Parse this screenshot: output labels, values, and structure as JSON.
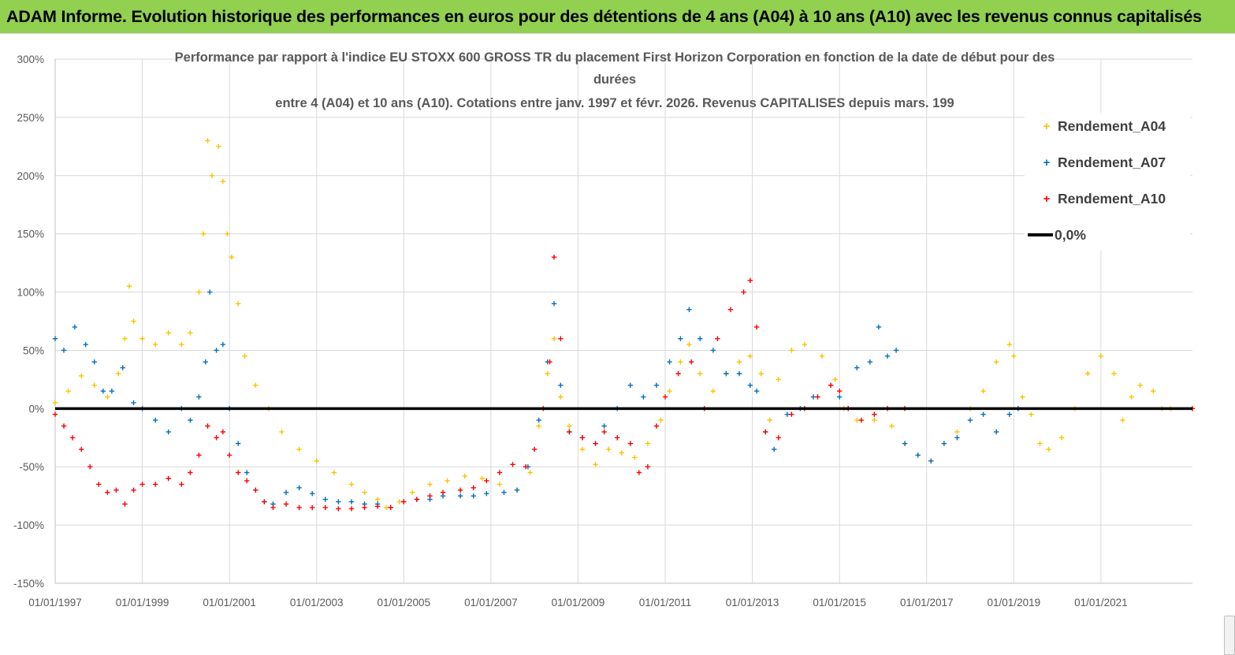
{
  "banner": {
    "text": "ADAM Informe. Evolution historique des performances en euros pour des détentions de 4 ans (A04) à 10 ans (A10) avec les revenus connus capitalisés"
  },
  "colors": {
    "banner_bg": "#92d050",
    "A04": "#ffc000",
    "A07": "#0070c0",
    "A10": "#ff0000",
    "zero_line": "#000000",
    "grid": "#d9d9d9",
    "axis_text": "#595959"
  },
  "chart_data": {
    "type": "scatter",
    "title_lines": [
      "Performance par rapport à l'indice EU STOXX 600 GROSS TR  du placement First Horizon Corporation en fonction de la date de début pour des",
      "durées",
      "entre 4 (A04) et 10 ans (A10). Cotations entre janv. 1997 et févr. 2026. Revenus CAPITALISES depuis mars. 199"
    ],
    "xlabel": "",
    "ylabel": "",
    "xlim": [
      1997.0,
      2023.1
    ],
    "ylim": [
      -150,
      300
    ],
    "y_ticks": [
      -150,
      -100,
      -50,
      0,
      50,
      100,
      150,
      200,
      250,
      300
    ],
    "y_tick_labels": [
      "-150%",
      "-100%",
      "-50%",
      "0%",
      "50%",
      "100%",
      "150%",
      "200%",
      "250%",
      "300%"
    ],
    "x_ticks": [
      1997,
      1999,
      2001,
      2003,
      2005,
      2007,
      2009,
      2011,
      2013,
      2015,
      2017,
      2019,
      2021
    ],
    "x_tick_labels": [
      "01/01/1997",
      "01/01/1999",
      "01/01/2001",
      "01/01/2003",
      "01/01/2005",
      "01/01/2007",
      "01/01/2009",
      "01/01/2011",
      "01/01/2013",
      "01/01/2015",
      "01/01/2017",
      "01/01/2019",
      "01/01/2021"
    ],
    "grid": true,
    "legend_position": "top-right",
    "series": [
      {
        "name": "Rendement_A04",
        "marker": "+",
        "points": [
          [
            1997.0,
            5
          ],
          [
            1997.3,
            15
          ],
          [
            1997.6,
            28
          ],
          [
            1997.9,
            20
          ],
          [
            1998.2,
            10
          ],
          [
            1998.45,
            30
          ],
          [
            1998.6,
            60
          ],
          [
            1998.7,
            105
          ],
          [
            1998.8,
            75
          ],
          [
            1999.0,
            60
          ],
          [
            1999.3,
            55
          ],
          [
            1999.6,
            65
          ],
          [
            1999.9,
            55
          ],
          [
            2000.1,
            65
          ],
          [
            2000.3,
            100
          ],
          [
            2000.4,
            150
          ],
          [
            2000.5,
            230
          ],
          [
            2000.6,
            200
          ],
          [
            2000.75,
            225
          ],
          [
            2000.85,
            195
          ],
          [
            2000.95,
            150
          ],
          [
            2001.05,
            130
          ],
          [
            2001.2,
            90
          ],
          [
            2001.35,
            45
          ],
          [
            2001.6,
            20
          ],
          [
            2001.9,
            0
          ],
          [
            2002.2,
            -20
          ],
          [
            2002.6,
            -35
          ],
          [
            2003.0,
            -45
          ],
          [
            2003.4,
            -55
          ],
          [
            2003.8,
            -65
          ],
          [
            2004.1,
            -72
          ],
          [
            2004.4,
            -78
          ],
          [
            2004.6,
            -85
          ],
          [
            2004.9,
            -80
          ],
          [
            2005.2,
            -72
          ],
          [
            2005.6,
            -65
          ],
          [
            2006.0,
            -62
          ],
          [
            2006.4,
            -58
          ],
          [
            2006.8,
            -60
          ],
          [
            2007.2,
            -65
          ],
          [
            2007.6,
            -70
          ],
          [
            2007.9,
            -55
          ],
          [
            2008.1,
            -15
          ],
          [
            2008.3,
            30
          ],
          [
            2008.45,
            60
          ],
          [
            2008.6,
            10
          ],
          [
            2008.8,
            -15
          ],
          [
            2009.1,
            -35
          ],
          [
            2009.4,
            -48
          ],
          [
            2009.7,
            -35
          ],
          [
            2010.0,
            -38
          ],
          [
            2010.3,
            -42
          ],
          [
            2010.6,
            -30
          ],
          [
            2010.9,
            -10
          ],
          [
            2011.1,
            15
          ],
          [
            2011.35,
            40
          ],
          [
            2011.55,
            55
          ],
          [
            2011.8,
            30
          ],
          [
            2012.1,
            15
          ],
          [
            2012.4,
            30
          ],
          [
            2012.7,
            40
          ],
          [
            2012.95,
            45
          ],
          [
            2013.2,
            30
          ],
          [
            2013.4,
            -10
          ],
          [
            2013.6,
            25
          ],
          [
            2013.9,
            50
          ],
          [
            2014.2,
            55
          ],
          [
            2014.6,
            45
          ],
          [
            2014.9,
            25
          ],
          [
            2015.1,
            0
          ],
          [
            2015.4,
            -10
          ],
          [
            2015.8,
            -10
          ],
          [
            2016.2,
            -15
          ],
          [
            2016.5,
            -30
          ],
          [
            2016.8,
            -40
          ],
          [
            2017.1,
            -45
          ],
          [
            2017.4,
            -30
          ],
          [
            2017.7,
            -20
          ],
          [
            2018.0,
            0
          ],
          [
            2018.3,
            15
          ],
          [
            2018.6,
            40
          ],
          [
            2018.9,
            55
          ],
          [
            2019.0,
            45
          ],
          [
            2019.2,
            10
          ],
          [
            2019.4,
            -5
          ],
          [
            2019.6,
            -30
          ],
          [
            2019.8,
            -35
          ],
          [
            2020.1,
            -25
          ],
          [
            2020.4,
            0
          ],
          [
            2020.7,
            30
          ],
          [
            2021.0,
            45
          ],
          [
            2021.3,
            30
          ],
          [
            2021.5,
            -10
          ],
          [
            2021.7,
            10
          ],
          [
            2021.9,
            20
          ],
          [
            2022.2,
            15
          ],
          [
            2022.4,
            0
          ],
          [
            2022.6,
            0
          ],
          [
            2023.1,
            0
          ]
        ]
      },
      {
        "name": "Rendement_A07",
        "marker": "+",
        "points": [
          [
            1997.0,
            60
          ],
          [
            1997.2,
            50
          ],
          [
            1997.45,
            70
          ],
          [
            1997.7,
            55
          ],
          [
            1997.9,
            40
          ],
          [
            1998.1,
            15
          ],
          [
            1998.3,
            15
          ],
          [
            1998.55,
            35
          ],
          [
            1998.8,
            5
          ],
          [
            1999.0,
            0
          ],
          [
            1999.3,
            -10
          ],
          [
            1999.6,
            -20
          ],
          [
            1999.9,
            0
          ],
          [
            2000.1,
            -10
          ],
          [
            2000.3,
            10
          ],
          [
            2000.45,
            40
          ],
          [
            2000.55,
            100
          ],
          [
            2000.7,
            50
          ],
          [
            2000.85,
            55
          ],
          [
            2001.0,
            0
          ],
          [
            2001.2,
            -30
          ],
          [
            2001.4,
            -55
          ],
          [
            2001.6,
            -70
          ],
          [
            2001.8,
            -80
          ],
          [
            2002.0,
            -82
          ],
          [
            2002.3,
            -72
          ],
          [
            2002.6,
            -68
          ],
          [
            2002.9,
            -73
          ],
          [
            2003.2,
            -78
          ],
          [
            2003.5,
            -80
          ],
          [
            2003.8,
            -80
          ],
          [
            2004.1,
            -82
          ],
          [
            2004.4,
            -82
          ],
          [
            2004.7,
            -85
          ],
          [
            2005.0,
            -80
          ],
          [
            2005.3,
            -78
          ],
          [
            2005.6,
            -78
          ],
          [
            2005.9,
            -75
          ],
          [
            2006.3,
            -75
          ],
          [
            2006.6,
            -75
          ],
          [
            2006.9,
            -73
          ],
          [
            2007.3,
            -72
          ],
          [
            2007.6,
            -70
          ],
          [
            2007.85,
            -50
          ],
          [
            2008.1,
            -10
          ],
          [
            2008.3,
            40
          ],
          [
            2008.45,
            90
          ],
          [
            2008.6,
            20
          ],
          [
            2008.8,
            -20
          ],
          [
            2009.1,
            -25
          ],
          [
            2009.4,
            -30
          ],
          [
            2009.6,
            -15
          ],
          [
            2009.9,
            0
          ],
          [
            2010.2,
            20
          ],
          [
            2010.5,
            10
          ],
          [
            2010.8,
            20
          ],
          [
            2011.1,
            40
          ],
          [
            2011.35,
            60
          ],
          [
            2011.55,
            85
          ],
          [
            2011.8,
            60
          ],
          [
            2012.1,
            50
          ],
          [
            2012.4,
            30
          ],
          [
            2012.7,
            30
          ],
          [
            2012.95,
            20
          ],
          [
            2013.1,
            15
          ],
          [
            2013.3,
            -20
          ],
          [
            2013.5,
            -35
          ],
          [
            2013.8,
            -5
          ],
          [
            2014.1,
            0
          ],
          [
            2014.4,
            10
          ],
          [
            2014.8,
            20
          ],
          [
            2015.0,
            10
          ],
          [
            2015.2,
            0
          ],
          [
            2015.4,
            35
          ],
          [
            2015.7,
            40
          ],
          [
            2015.9,
            70
          ],
          [
            2016.1,
            45
          ],
          [
            2016.3,
            50
          ],
          [
            2016.5,
            -30
          ],
          [
            2016.8,
            -40
          ],
          [
            2017.1,
            -45
          ],
          [
            2017.4,
            -30
          ],
          [
            2017.7,
            -25
          ],
          [
            2018.0,
            -10
          ],
          [
            2018.3,
            -5
          ],
          [
            2018.6,
            -20
          ],
          [
            2018.9,
            -5
          ],
          [
            2019.1,
            0
          ]
        ]
      },
      {
        "name": "Rendement_A10",
        "marker": "+",
        "points": [
          [
            1997.0,
            -5
          ],
          [
            1997.2,
            -15
          ],
          [
            1997.4,
            -25
          ],
          [
            1997.6,
            -35
          ],
          [
            1997.8,
            -50
          ],
          [
            1998.0,
            -65
          ],
          [
            1998.2,
            -72
          ],
          [
            1998.4,
            -70
          ],
          [
            1998.6,
            -82
          ],
          [
            1998.8,
            -70
          ],
          [
            1999.0,
            -65
          ],
          [
            1999.3,
            -65
          ],
          [
            1999.6,
            -60
          ],
          [
            1999.9,
            -65
          ],
          [
            2000.1,
            -55
          ],
          [
            2000.3,
            -40
          ],
          [
            2000.5,
            -15
          ],
          [
            2000.7,
            -25
          ],
          [
            2000.85,
            -20
          ],
          [
            2001.0,
            -40
          ],
          [
            2001.2,
            -55
          ],
          [
            2001.4,
            -62
          ],
          [
            2001.6,
            -70
          ],
          [
            2001.8,
            -80
          ],
          [
            2002.0,
            -85
          ],
          [
            2002.3,
            -82
          ],
          [
            2002.6,
            -85
          ],
          [
            2002.9,
            -85
          ],
          [
            2003.2,
            -85
          ],
          [
            2003.5,
            -86
          ],
          [
            2003.8,
            -86
          ],
          [
            2004.1,
            -85
          ],
          [
            2004.4,
            -84
          ],
          [
            2004.7,
            -85
          ],
          [
            2005.0,
            -80
          ],
          [
            2005.3,
            -78
          ],
          [
            2005.6,
            -75
          ],
          [
            2005.9,
            -72
          ],
          [
            2006.3,
            -70
          ],
          [
            2006.6,
            -68
          ],
          [
            2006.9,
            -62
          ],
          [
            2007.2,
            -55
          ],
          [
            2007.5,
            -48
          ],
          [
            2007.8,
            -50
          ],
          [
            2008.0,
            -35
          ],
          [
            2008.2,
            0
          ],
          [
            2008.35,
            40
          ],
          [
            2008.45,
            130
          ],
          [
            2008.6,
            60
          ],
          [
            2008.8,
            -20
          ],
          [
            2009.1,
            -25
          ],
          [
            2009.4,
            -30
          ],
          [
            2009.6,
            -20
          ],
          [
            2009.9,
            -25
          ],
          [
            2010.2,
            -30
          ],
          [
            2010.4,
            -55
          ],
          [
            2010.6,
            -50
          ],
          [
            2010.8,
            -15
          ],
          [
            2011.0,
            10
          ],
          [
            2011.3,
            30
          ],
          [
            2011.6,
            40
          ],
          [
            2011.9,
            0
          ],
          [
            2012.2,
            60
          ],
          [
            2012.5,
            85
          ],
          [
            2012.8,
            100
          ],
          [
            2012.95,
            110
          ],
          [
            2013.1,
            70
          ],
          [
            2013.3,
            -20
          ],
          [
            2013.6,
            -25
          ],
          [
            2013.9,
            -5
          ],
          [
            2014.2,
            0
          ],
          [
            2014.5,
            10
          ],
          [
            2014.8,
            20
          ],
          [
            2015.0,
            15
          ],
          [
            2015.2,
            0
          ],
          [
            2015.5,
            -10
          ],
          [
            2015.8,
            -5
          ],
          [
            2016.1,
            0
          ],
          [
            2016.5,
            0
          ],
          [
            2023.1,
            0
          ]
        ]
      },
      {
        "name": "0,0%",
        "marker": "line",
        "points": [
          [
            1997.0,
            0
          ],
          [
            2023.1,
            0
          ]
        ]
      }
    ]
  }
}
